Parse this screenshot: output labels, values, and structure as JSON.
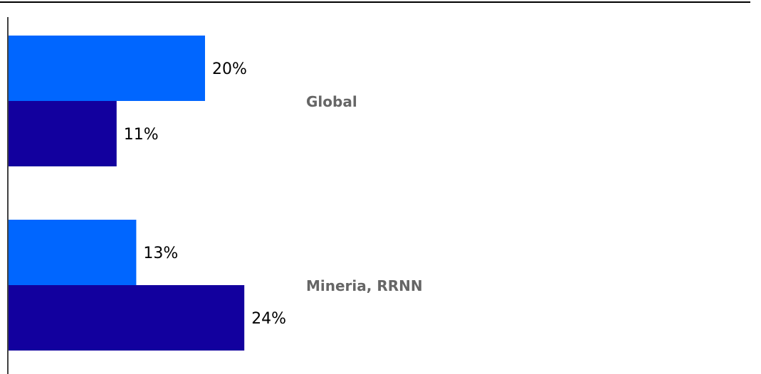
{
  "chart_data": {
    "type": "bar",
    "orientation": "horizontal",
    "title": "",
    "xlabel": "",
    "ylabel": "",
    "categories": [
      "Global",
      "Mineria, RRNN"
    ],
    "series": [
      {
        "color": "#0066ff",
        "values": [
          20,
          13
        ],
        "labels": [
          "20%",
          "13%"
        ]
      },
      {
        "color": "#12009e",
        "values": [
          11,
          24
        ],
        "labels": [
          "11%",
          "24%"
        ]
      }
    ],
    "xlim": [
      0,
      50
    ],
    "grid": false,
    "legend": "none"
  }
}
